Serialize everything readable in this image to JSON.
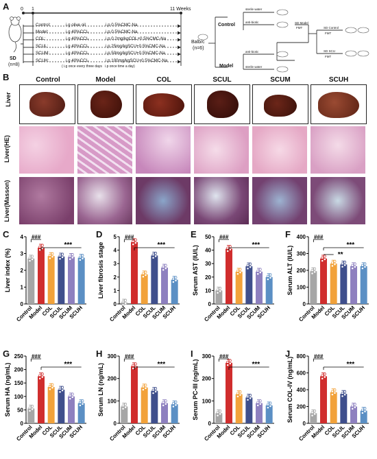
{
  "panels": {
    "A": "A",
    "B": "B",
    "C": "C",
    "D": "D",
    "E": "E",
    "F": "F",
    "G": "G",
    "H": "H",
    "I": "I",
    "J": "J"
  },
  "design": {
    "timeline_start": "0",
    "timeline_one": "1",
    "timeline_end": "11 Weeks",
    "animal": "SD",
    "animal_n": "(n=8)",
    "rows": [
      {
        "group": "Control:",
        "gavage": "i.g olive oil",
        "ip": "i.p 0.5%CMC-Na"
      },
      {
        "group": "Model:",
        "gavage": "i.g 40%CCl₄",
        "ip": "i.p 0.5%CMC-Na"
      },
      {
        "group": "COL:",
        "gavage": "i.g 40%CCl₄",
        "ip": "i.p 0.2mg/kgCOL+0.5%CMC-Na"
      },
      {
        "group": "SCUL:",
        "gavage": "i.g 40%CCl₄",
        "ip": "i.p 25mg/kgSCU+0.5%CMC-Na"
      },
      {
        "group": "SCUM:",
        "gavage": "i.g 40%CCl₄",
        "ip": "i.p 50mg/kgSCU+0.5%CMC-Na"
      },
      {
        "group": "SCUH:",
        "gavage": "i.g 40%CCl₄",
        "ip": "i.p 100mg/kgSCU+0.5%CMC-Na"
      }
    ],
    "footnote_1": "( i.g once every three days",
    "footnote_2": "i.p once time a day)"
  },
  "fmt": {
    "root": "Balb/c",
    "root_n": "(n=6)",
    "branch_control": "Control",
    "branch_model": "Model",
    "sterile_water": "sterile water",
    "anti_biotic": "anti-biotic",
    "sd_model": "SD Model",
    "fmt": "FMT",
    "sd_control": "SD Control",
    "sd_scu": "SD SCU"
  },
  "histology": {
    "groups": [
      "Control",
      "Model",
      "COL",
      "SCUL",
      "SCUM",
      "SCUH"
    ],
    "rows": [
      "Liver",
      "Liver(HE)",
      "Liver(Masson)"
    ]
  },
  "colors": {
    "Control": "#a6a6a6",
    "Model": "#d02d2d",
    "COL": "#f2a23a",
    "SCUL": "#3f4f8c",
    "SCUM": "#8e80bf",
    "SCUH": "#5b8fc4"
  },
  "chart_data": [
    {
      "panel": "C",
      "type": "bar",
      "categories": [
        "Control",
        "Model",
        "COL",
        "SCUL",
        "SCUM",
        "SCUH"
      ],
      "values": [
        2.7,
        3.35,
        2.85,
        2.82,
        2.8,
        2.75
      ],
      "ylabel": "Liver index (%)",
      "ylim": [
        0,
        4
      ],
      "yticks": [
        "0",
        "1",
        "2",
        "3",
        "4"
      ],
      "sig_model": "###",
      "sig_treat": "***"
    },
    {
      "panel": "D",
      "type": "bar",
      "categories": [
        "Control",
        "Model",
        "COL",
        "SCUL",
        "SCUM",
        "SCUH"
      ],
      "values": [
        0.1,
        4.6,
        2.2,
        3.6,
        2.7,
        1.8
      ],
      "ylabel": "Liver fibrosis stage",
      "ylim": [
        0,
        5
      ],
      "yticks": [
        "0",
        "1",
        "2",
        "3",
        "4",
        "5"
      ],
      "sig_model": "###",
      "sig_treat": "***"
    },
    {
      "panel": "E",
      "type": "bar",
      "categories": [
        "Control",
        "Model",
        "COL",
        "SCUL",
        "SCUM",
        "SCUH"
      ],
      "values": [
        10,
        41,
        24,
        28,
        24,
        20
      ],
      "ylabel": "Serum AST (IU/L)",
      "ylim": [
        0,
        50
      ],
      "yticks": [
        "0",
        "10",
        "20",
        "30",
        "40",
        "50"
      ],
      "sig_model": "###",
      "sig_treat": "***"
    },
    {
      "panel": "F",
      "type": "bar",
      "categories": [
        "Control",
        "Model",
        "COL",
        "SCUL",
        "SCUM",
        "SCUH"
      ],
      "values": [
        195,
        270,
        240,
        235,
        225,
        225
      ],
      "ylabel": "Serum ALT (IU/L)",
      "ylim": [
        0,
        400
      ],
      "yticks": [
        "0",
        "100",
        "200",
        "300",
        "400"
      ],
      "sig_model": "###",
      "sig_treat": "***",
      "sig_extra": "**"
    },
    {
      "panel": "G",
      "type": "bar",
      "categories": [
        "Control",
        "Model",
        "COL",
        "SCUL",
        "SCUM",
        "SCUH"
      ],
      "values": [
        55,
        175,
        135,
        125,
        100,
        75
      ],
      "ylabel": "Serum HA (ng/mL)",
      "ylim": [
        0,
        250
      ],
      "yticks": [
        "0",
        "50",
        "100",
        "150",
        "200",
        "250"
      ],
      "sig_model": "###",
      "sig_treat": "***"
    },
    {
      "panel": "H",
      "type": "bar",
      "categories": [
        "Control",
        "Model",
        "COL",
        "SCUL",
        "SCUM",
        "SCUH"
      ],
      "values": [
        75,
        255,
        160,
        145,
        90,
        85
      ],
      "ylabel": "Serum LN (ng/mL)",
      "ylim": [
        0,
        300
      ],
      "yticks": [
        "0",
        "100",
        "200",
        "300"
      ],
      "sig_model": "###",
      "sig_treat": "***"
    },
    {
      "panel": "I",
      "type": "bar",
      "categories": [
        "Control",
        "Model",
        "COL",
        "SCUL",
        "SCUM",
        "SCUH"
      ],
      "values": [
        45,
        270,
        130,
        115,
        90,
        80
      ],
      "ylabel": "Serum PC-III (ng/mL)",
      "ylim": [
        0,
        300
      ],
      "yticks": [
        "0",
        "100",
        "200",
        "300"
      ],
      "sig_model": "###",
      "sig_treat": "***"
    },
    {
      "panel": "J",
      "type": "bar",
      "categories": [
        "Control",
        "Model",
        "COL",
        "SCUL",
        "SCUM",
        "SCUH"
      ],
      "values": [
        120,
        560,
        370,
        350,
        200,
        150
      ],
      "ylabel": "Serum COL-IV (ng/mL)",
      "ylim": [
        0,
        800
      ],
      "yticks": [
        "0",
        "200",
        "400",
        "600",
        "800"
      ],
      "sig_model": "###",
      "sig_treat": "***"
    }
  ]
}
